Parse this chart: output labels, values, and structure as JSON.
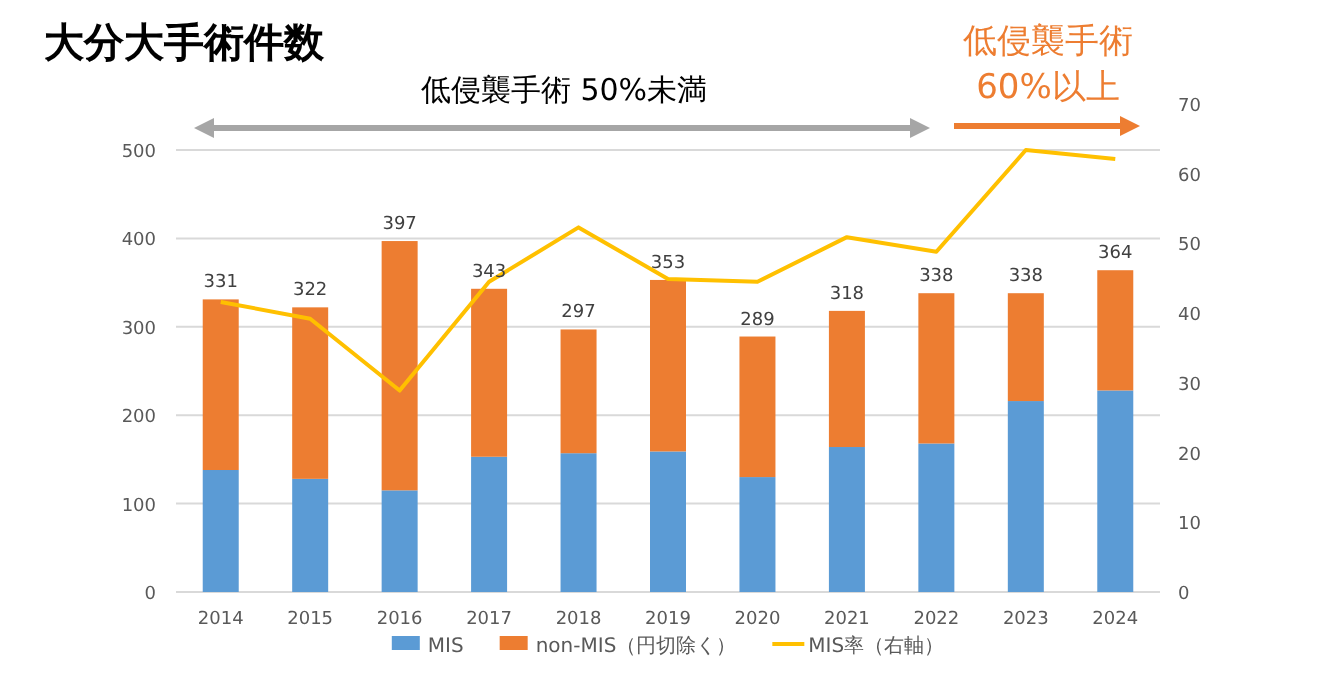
{
  "chart_data": {
    "type": "bar",
    "title": "大分大手術件数",
    "categories": [
      "2014",
      "2015",
      "2016",
      "2017",
      "2018",
      "2019",
      "2020",
      "2021",
      "2022",
      "2023",
      "2024"
    ],
    "series": [
      {
        "name": "MIS",
        "color": "#5b9bd5",
        "values": [
          138,
          128,
          115,
          153,
          157,
          159,
          130,
          164,
          168,
          216,
          228
        ]
      },
      {
        "name": "non-MIS（円切除く）",
        "color": "#ed7d31",
        "values": [
          193,
          194,
          282,
          190,
          140,
          194,
          159,
          154,
          170,
          122,
          136
        ]
      },
      {
        "name": "MIS率（右軸）",
        "type": "line",
        "axis": "y2",
        "color": "#ffc000",
        "values": [
          41.6,
          39.2,
          28.9,
          44.5,
          52.3,
          44.9,
          44.5,
          50.9,
          48.8,
          63.4,
          62.1
        ]
      }
    ],
    "stacked": true,
    "totals": [
      "331",
      "322",
      "397",
      "343",
      "297",
      "353",
      "289",
      "318",
      "338",
      "338",
      "364"
    ],
    "ylim": [
      0,
      500
    ],
    "yticks": [
      0,
      100,
      200,
      300,
      400,
      500
    ],
    "y2lim": [
      0,
      70
    ],
    "y2ticks": [
      0,
      10,
      20,
      30,
      40,
      50,
      60,
      70
    ],
    "grid": "y",
    "legend": "bottom",
    "annotations": [
      "低侵襲手術 50%未満",
      "低侵襲手術\n60%以上"
    ]
  }
}
